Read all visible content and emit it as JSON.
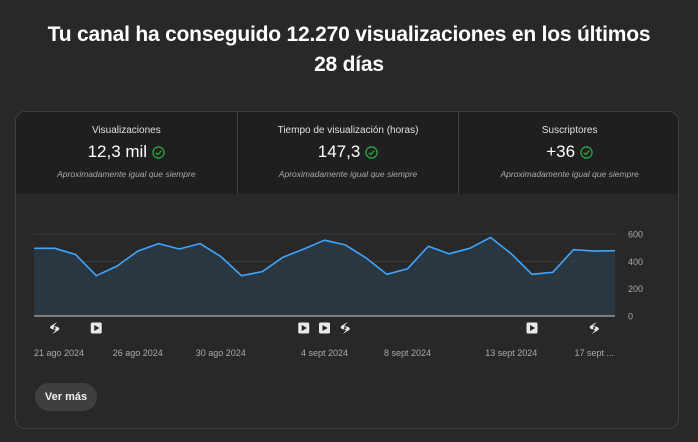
{
  "headline": {
    "line1": "Tu canal ha conseguido 12.270 visualizaciones en los últimos",
    "line2": "28 días"
  },
  "metrics": [
    {
      "label": "Visualizaciones",
      "value": "12,3 mil",
      "sub": "Aproximadamente igual que siempre",
      "icon": "check-circle-icon"
    },
    {
      "label": "Tiempo de visualización (horas)",
      "value": "147,3",
      "sub": "Aproximadamente igual que siempre",
      "icon": "check-circle-icon"
    },
    {
      "label": "Suscriptores",
      "value": "+36",
      "sub": "Aproximadamente igual que siempre",
      "icon": "check-circle-icon"
    }
  ],
  "colors": {
    "line": "#3ea6ff",
    "check": "#2ba640",
    "background": "#282828"
  },
  "chart_data": {
    "type": "area",
    "x": [
      "21 ago 2024",
      "22 ago 2024",
      "23 ago 2024",
      "24 ago 2024",
      "25 ago 2024",
      "26 ago 2024",
      "27 ago 2024",
      "28 ago 2024",
      "29 ago 2024",
      "30 ago 2024",
      "31 ago 2024",
      "1 sept 2024",
      "2 sept 2024",
      "3 sept 2024",
      "4 sept 2024",
      "5 sept 2024",
      "6 sept 2024",
      "7 sept 2024",
      "8 sept 2024",
      "9 sept 2024",
      "10 sept 2024",
      "11 sept 2024",
      "12 sept 2024",
      "13 sept 2024",
      "14 sept 2024",
      "15 sept 2024",
      "16 sept 2024",
      "17 sept 2024",
      "18 sept 2024"
    ],
    "series": [
      {
        "values": [
          495,
          495,
          450,
          295,
          365,
          475,
          530,
          490,
          530,
          435,
          295,
          325,
          430,
          490,
          555,
          520,
          425,
          305,
          345,
          510,
          455,
          495,
          575,
          455,
          305,
          320,
          485,
          475,
          478
        ]
      }
    ],
    "tick_labels": [
      "21 ago 2024",
      "26 ago 2024",
      "30 ago 2024",
      "4 sept 2024",
      "8 sept 2024",
      "13 sept 2024",
      "17 sept ..."
    ],
    "tick_indices": [
      0,
      5,
      9,
      14,
      18,
      23,
      27
    ],
    "y_ticks": [
      0,
      200,
      400,
      600
    ],
    "ylim": [
      0,
      600
    ],
    "grid": true,
    "markers": [
      {
        "index": 1,
        "icon": "shorts-icon"
      },
      {
        "index": 3,
        "icon": "video-icon"
      },
      {
        "index": 13,
        "icon": "video-icon"
      },
      {
        "index": 14,
        "icon": "video-icon"
      },
      {
        "index": 15,
        "icon": "shorts-icon"
      },
      {
        "index": 24,
        "icon": "video-icon"
      },
      {
        "index": 27,
        "icon": "shorts-icon"
      }
    ]
  },
  "button": {
    "label": "Ver más"
  }
}
